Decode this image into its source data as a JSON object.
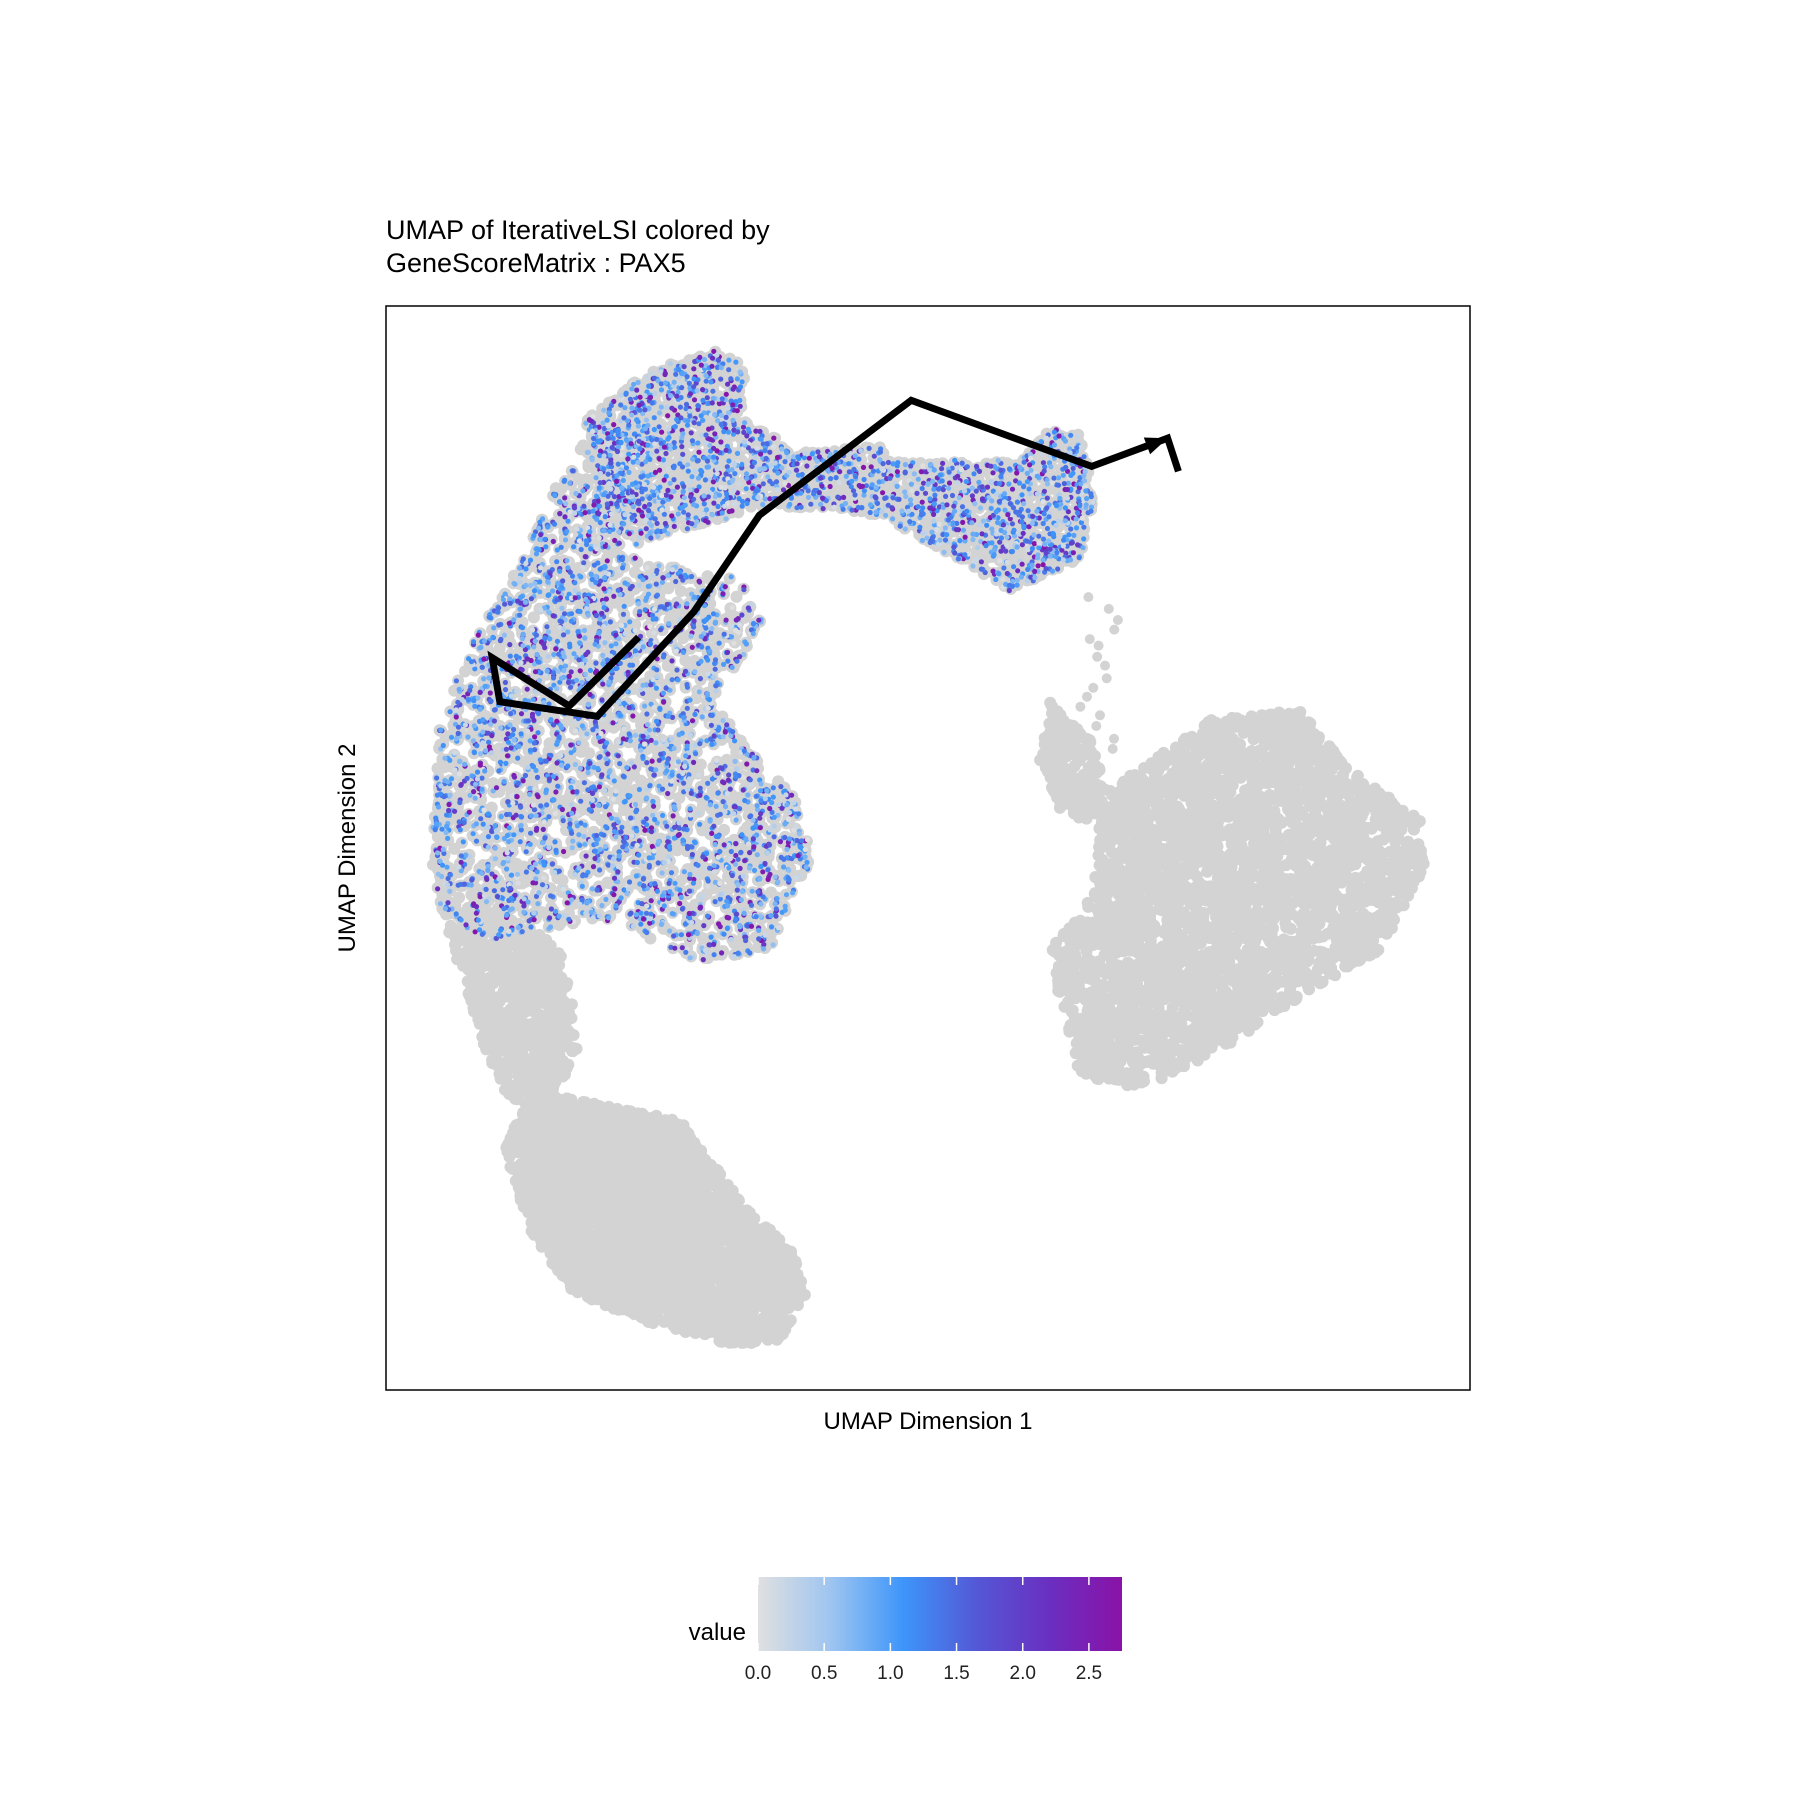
{
  "chart_data": {
    "type": "scatter",
    "title_lines": [
      "UMAP of IterativeLSI colored by",
      "GeneScoreMatrix : PAX5"
    ],
    "xlabel": "UMAP Dimension 1",
    "ylabel": "UMAP Dimension 2",
    "xticks": [],
    "yticks": [],
    "xlim": [
      -10,
      10
    ],
    "ylim": [
      -10,
      10
    ],
    "grid": false,
    "legend": {
      "position": "bottom",
      "title": "value",
      "range": [
        0,
        2.75
      ],
      "ticks": [
        "0.0",
        "0.5",
        "1.0",
        "1.5",
        "2.0",
        "2.5"
      ],
      "colors": [
        "#e0e0e0",
        "#9ec5f0",
        "#3d95fa",
        "#5458d6",
        "#6a2fc0",
        "#8a12a8"
      ]
    },
    "background_color": "#d3d3d3",
    "trajectory": [
      [
        -5.34,
        3.89
      ],
      [
        -6.62,
        2.62
      ],
      [
        -8.04,
        3.51
      ],
      [
        -7.9,
        2.7
      ],
      [
        -6.1,
        2.43
      ],
      [
        -4.32,
        4.36
      ],
      [
        -3.11,
        6.14
      ],
      [
        -0.31,
        8.26
      ],
      [
        3.02,
        7.04
      ],
      [
        4.42,
        7.56
      ],
      [
        4.62,
        6.95
      ]
    ],
    "clusters": [
      {
        "region": "upper-left arc (PAX5 high)",
        "x": [
          -9.56,
          -4.43
        ],
        "y": [
          1.1,
          10.21
        ],
        "pax5_mean": 1.3
      },
      {
        "region": "upper arm (PAX5 high)",
        "x": [
          -2.15,
          4.84
        ],
        "y": [
          6.04,
          8.51
        ],
        "pax5_mean": 1.4
      },
      {
        "region": "left lower stem",
        "x": [
          -8.72,
          -7.22
        ],
        "y": [
          -4.51,
          1.19
        ],
        "pax5_mean": 0
      },
      {
        "region": "bottom-left blob",
        "x": [
          -7.6,
          -2.89
        ],
        "y": [
          -9.08,
          -2.21
        ],
        "pax5_mean": 0
      },
      {
        "region": "right large blob",
        "x": [
          2.1,
          9.55
        ],
        "y": [
          -4.26,
          3.41
        ],
        "pax5_mean": 0
      }
    ]
  }
}
